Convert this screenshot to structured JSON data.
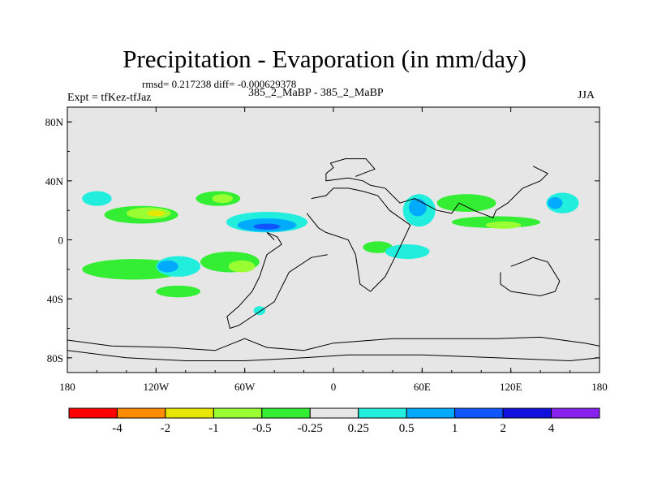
{
  "header": {
    "title": "Precipitation - Evaporation (in mm/day)",
    "stats": "rmsd= 0.217238 diff= -0.000629378",
    "expt": "Expt = tfKez-tfJaz",
    "runs": "385_2_MaBP - 385_2_MaBP",
    "season": "JJA"
  },
  "axes": {
    "x_ticks": [
      "180",
      "120W",
      "60W",
      "0",
      "60E",
      "120E",
      "180"
    ],
    "y_ticks": [
      "80N",
      "40N",
      "0",
      "40S",
      "80S"
    ],
    "x_range_deg": [
      -180,
      180
    ],
    "y_range_deg": [
      -90,
      90
    ]
  },
  "colorbar": {
    "levels": [
      "-4",
      "-2",
      "-1",
      "-0.5",
      "-0.25",
      "0.25",
      "0.5",
      "1",
      "2",
      "4"
    ],
    "colors": [
      "#ff0000",
      "#ff8c00",
      "#e6e600",
      "#99ff33",
      "#33ee33",
      "#e6e6e6",
      "#22eedd",
      "#00aaff",
      "#1155ff",
      "#1111dd",
      "#8822ee"
    ]
  },
  "colors": {
    "map_background": "#e6e6e6",
    "coastline": "#000000"
  },
  "anomaly_regions": [
    {
      "level": "-0.25",
      "lon": -130,
      "lat": 17,
      "w": 50,
      "h": 12
    },
    {
      "level": "-0.25",
      "lon": -78,
      "lat": 28,
      "w": 30,
      "h": 10
    },
    {
      "level": "-0.25",
      "lon": -135,
      "lat": -20,
      "w": 70,
      "h": 14
    },
    {
      "level": "-0.25",
      "lon": -70,
      "lat": -15,
      "w": 40,
      "h": 14
    },
    {
      "level": "-0.25",
      "lon": -105,
      "lat": -35,
      "w": 30,
      "h": 8
    },
    {
      "level": "-0.25",
      "lon": 110,
      "lat": 12,
      "w": 60,
      "h": 8
    },
    {
      "level": "-0.25",
      "lon": 90,
      "lat": 25,
      "w": 40,
      "h": 12
    },
    {
      "level": "-0.25",
      "lon": 30,
      "lat": -5,
      "w": 20,
      "h": 8
    },
    {
      "level": "-0.5",
      "lon": -125,
      "lat": 18,
      "w": 30,
      "h": 8
    },
    {
      "level": "-0.5",
      "lon": -75,
      "lat": 28,
      "w": 14,
      "h": 6
    },
    {
      "level": "-0.5",
      "lon": -62,
      "lat": -18,
      "w": 18,
      "h": 8
    },
    {
      "level": "-0.5",
      "lon": 115,
      "lat": 10,
      "w": 24,
      "h": 5
    },
    {
      "level": "-1",
      "lon": -120,
      "lat": 18,
      "w": 12,
      "h": 4
    },
    {
      "level": "0.25",
      "lon": -45,
      "lat": 12,
      "w": 55,
      "h": 14
    },
    {
      "level": "0.25",
      "lon": 58,
      "lat": 20,
      "w": 22,
      "h": 22
    },
    {
      "level": "0.25",
      "lon": -105,
      "lat": -18,
      "w": 30,
      "h": 14
    },
    {
      "level": "0.25",
      "lon": 155,
      "lat": 25,
      "w": 22,
      "h": 14
    },
    {
      "level": "0.25",
      "lon": -160,
      "lat": 28,
      "w": 20,
      "h": 10
    },
    {
      "level": "0.25",
      "lon": 50,
      "lat": -8,
      "w": 30,
      "h": 10
    },
    {
      "level": "0.25",
      "lon": -50,
      "lat": -48,
      "w": 8,
      "h": 6
    },
    {
      "level": "0.5",
      "lon": -45,
      "lat": 10,
      "w": 40,
      "h": 9
    },
    {
      "level": "0.5",
      "lon": 57,
      "lat": 22,
      "w": 12,
      "h": 12
    },
    {
      "level": "0.5",
      "lon": -112,
      "lat": -18,
      "w": 14,
      "h": 8
    },
    {
      "level": "0.5",
      "lon": 150,
      "lat": 25,
      "w": 10,
      "h": 8
    },
    {
      "level": "1",
      "lon": -45,
      "lat": 9,
      "w": 18,
      "h": 4
    }
  ],
  "land_outlines": [
    [
      [
        -4,
        -10
      ],
      [
        -15,
        -12
      ],
      [
        -30,
        -22
      ],
      [
        -40,
        -42
      ],
      [
        -55,
        -52
      ],
      [
        -64,
        -58
      ],
      [
        -70,
        -60
      ],
      [
        -72,
        -52
      ],
      [
        -64,
        -45
      ],
      [
        -55,
        -35
      ],
      [
        -50,
        -25
      ],
      [
        -45,
        -10
      ],
      [
        -35,
        -3
      ],
      [
        -38,
        2
      ],
      [
        -45,
        5
      ],
      [
        -40,
        0
      ]
    ],
    [
      [
        -5,
        45
      ],
      [
        -5,
        40
      ],
      [
        10,
        42
      ],
      [
        20,
        40
      ],
      [
        25,
        37
      ],
      [
        35,
        35
      ],
      [
        40,
        30
      ],
      [
        45,
        25
      ],
      [
        55,
        28
      ],
      [
        70,
        20
      ],
      [
        80,
        18
      ],
      [
        85,
        25
      ],
      [
        95,
        20
      ],
      [
        108,
        15
      ],
      [
        110,
        20
      ],
      [
        118,
        25
      ],
      [
        128,
        35
      ],
      [
        140,
        40
      ],
      [
        145,
        45
      ],
      [
        135,
        50
      ]
    ],
    [
      [
        -18,
        18
      ],
      [
        -10,
        8
      ],
      [
        -5,
        5
      ],
      [
        10,
        0
      ],
      [
        15,
        -10
      ],
      [
        18,
        -30
      ],
      [
        25,
        -35
      ],
      [
        35,
        -25
      ],
      [
        40,
        -15
      ],
      [
        45,
        -5
      ],
      [
        52,
        10
      ],
      [
        45,
        15
      ],
      [
        38,
        20
      ],
      [
        30,
        30
      ],
      [
        20,
        33
      ],
      [
        10,
        35
      ],
      [
        0,
        35
      ],
      [
        -5,
        30
      ],
      [
        -15,
        28
      ]
    ],
    [
      [
        113,
        -22
      ],
      [
        113,
        -30
      ],
      [
        120,
        -35
      ],
      [
        140,
        -38
      ],
      [
        150,
        -35
      ],
      [
        153,
        -28
      ],
      [
        145,
        -15
      ],
      [
        135,
        -12
      ],
      [
        128,
        -15
      ],
      [
        120,
        -18
      ]
    ],
    [
      [
        -180,
        -68
      ],
      [
        -150,
        -72
      ],
      [
        -110,
        -73
      ],
      [
        -80,
        -75
      ],
      [
        -60,
        -67
      ],
      [
        -45,
        -73
      ],
      [
        -20,
        -75
      ],
      [
        0,
        -70
      ],
      [
        40,
        -67
      ],
      [
        80,
        -67
      ],
      [
        110,
        -67
      ],
      [
        140,
        -66
      ],
      [
        170,
        -70
      ],
      [
        180,
        -72
      ]
    ],
    [
      [
        -180,
        -75
      ],
      [
        -140,
        -80
      ],
      [
        -100,
        -82
      ],
      [
        -60,
        -82
      ],
      [
        -20,
        -80
      ],
      [
        10,
        -78
      ],
      [
        60,
        -78
      ],
      [
        110,
        -80
      ],
      [
        160,
        -82
      ],
      [
        180,
        -80
      ]
    ],
    [
      [
        -5,
        45
      ],
      [
        0,
        49
      ],
      [
        -2,
        52
      ],
      [
        8,
        55
      ],
      [
        22,
        55
      ],
      [
        28,
        48
      ],
      [
        20,
        45
      ],
      [
        15,
        43
      ]
    ]
  ]
}
